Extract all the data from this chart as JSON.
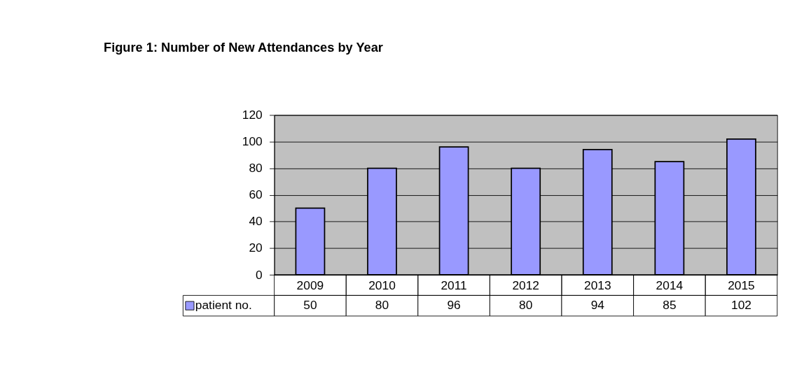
{
  "chart_data": {
    "type": "bar",
    "title": "Figure 1: Number of  New  Attendances by Year",
    "categories": [
      "2009",
      "2010",
      "2011",
      "2012",
      "2013",
      "2014",
      "2015"
    ],
    "series": [
      {
        "name": "patient no.",
        "color": "#9999ff",
        "values": [
          50,
          80,
          96,
          80,
          94,
          85,
          102
        ]
      }
    ],
    "ylim": [
      0,
      120
    ],
    "yticks": [
      0,
      20,
      40,
      60,
      80,
      100,
      120
    ],
    "grid": "y",
    "legend": "bottom left",
    "data_labels": true
  }
}
